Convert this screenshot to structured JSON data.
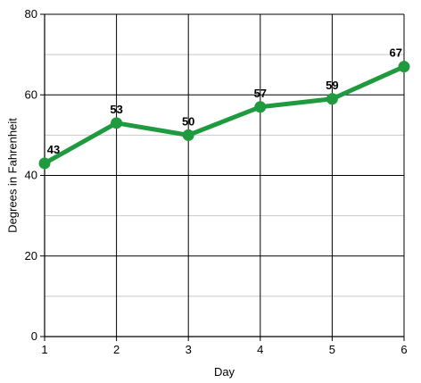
{
  "chart_data": {
    "type": "line",
    "x": [
      1,
      2,
      3,
      4,
      5,
      6
    ],
    "series": [
      {
        "values": [
          43,
          53,
          50,
          57,
          59,
          67
        ],
        "color": "#1f9a3f"
      }
    ],
    "data_labels": [
      "43",
      "53",
      "50",
      "57",
      "59",
      "67"
    ],
    "xlabel": "Day",
    "ylabel": "Degrees in Fahrenheit",
    "xlim": [
      1,
      6
    ],
    "ylim": [
      0,
      80
    ],
    "x_ticks": [
      "1",
      "2",
      "3",
      "4",
      "5",
      "6"
    ],
    "y_ticks": [
      "0",
      "20",
      "40",
      "60",
      "80"
    ],
    "y_major_step": 20,
    "y_minor_step": 10,
    "grid": true
  }
}
